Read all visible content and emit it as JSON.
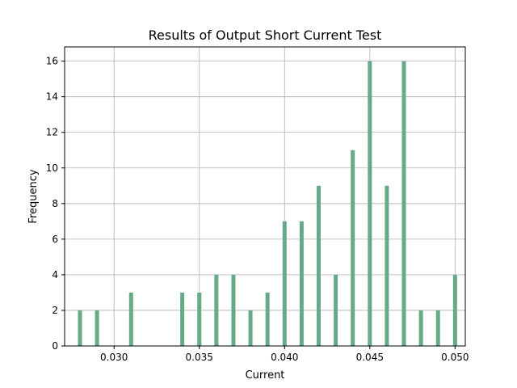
{
  "chart_data": {
    "type": "bar",
    "title": "Results of Output Short Current  Test",
    "xlabel": "Current",
    "ylabel": "Frequency",
    "x": [
      0.028,
      0.029,
      0.031,
      0.034,
      0.035,
      0.036,
      0.037,
      0.038,
      0.039,
      0.04,
      0.041,
      0.042,
      0.043,
      0.044,
      0.045,
      0.046,
      0.047,
      0.048,
      0.049,
      0.05
    ],
    "values": [
      2,
      2,
      3,
      3,
      3,
      4,
      4,
      2,
      3,
      7,
      7,
      9,
      4,
      11,
      16,
      9,
      16,
      2,
      2,
      4
    ],
    "xlim": [
      0.0271,
      0.0506
    ],
    "ylim": [
      0,
      16.8
    ],
    "xticks": [
      0.03,
      0.035,
      0.04,
      0.045,
      0.05
    ],
    "xtick_labels": [
      "0.030",
      "0.035",
      "0.040",
      "0.045",
      "0.050"
    ],
    "yticks": [
      0,
      2,
      4,
      6,
      8,
      10,
      12,
      14,
      16
    ],
    "ytick_labels": [
      "0",
      "2",
      "4",
      "6",
      "8",
      "10",
      "12",
      "14",
      "16"
    ],
    "grid": true,
    "bar_color": "#66aa88"
  }
}
